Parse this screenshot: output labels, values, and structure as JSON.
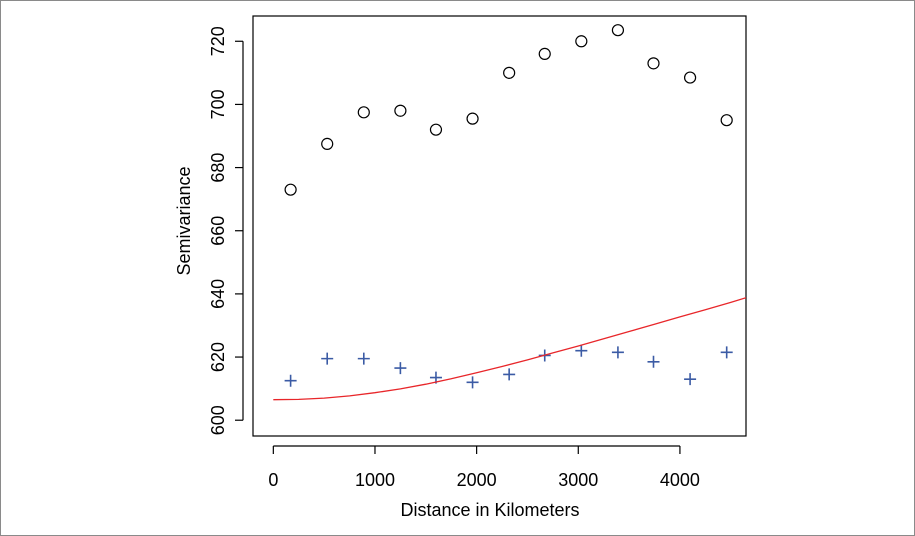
{
  "chart_data": {
    "type": "scatter",
    "xlabel": "Distance in Kilometers",
    "ylabel": "Semivariance",
    "xlim": [
      -200,
      4650
    ],
    "ylim": [
      595,
      728
    ],
    "x_ticks": [
      0,
      1000,
      2000,
      3000,
      4000
    ],
    "x_tick_labels": [
      "0",
      "1000",
      "2000",
      "3000",
      "4000"
    ],
    "y_ticks": [
      600,
      620,
      640,
      660,
      680,
      700,
      720
    ],
    "y_tick_labels": [
      "600",
      "620",
      "640",
      "660",
      "680",
      "700",
      "720"
    ],
    "grid": false,
    "legend": "none",
    "series": [
      {
        "marker": "open-circle",
        "color": "#000000",
        "points": [
          [
            170,
            673
          ],
          [
            530,
            687.5
          ],
          [
            890,
            697.5
          ],
          [
            1250,
            698
          ],
          [
            1600,
            692
          ],
          [
            1960,
            695.5
          ],
          [
            2320,
            710
          ],
          [
            2670,
            716
          ],
          [
            3030,
            720
          ],
          [
            3390,
            723.5
          ],
          [
            3740,
            713
          ],
          [
            4100,
            708.5
          ],
          [
            4460,
            695
          ]
        ]
      },
      {
        "marker": "plus",
        "color": "#3b5ba5",
        "points": [
          [
            170,
            612.5
          ],
          [
            530,
            619.5
          ],
          [
            890,
            619.5
          ],
          [
            1250,
            616.5
          ],
          [
            1600,
            613.5
          ],
          [
            1960,
            612
          ],
          [
            2320,
            614.5
          ],
          [
            2670,
            620.5
          ],
          [
            3030,
            622
          ],
          [
            3390,
            621.5
          ],
          [
            3740,
            618.5
          ],
          [
            4100,
            613
          ],
          [
            4460,
            621.5
          ]
        ]
      },
      {
        "marker": "line",
        "color": "#e8262a",
        "points": [
          [
            0,
            606.5
          ],
          [
            250,
            606.6
          ],
          [
            500,
            607
          ],
          [
            750,
            607.7
          ],
          [
            1000,
            608.7
          ],
          [
            1250,
            609.9
          ],
          [
            1500,
            611.4
          ],
          [
            1750,
            613.1
          ],
          [
            2000,
            615
          ],
          [
            2250,
            617
          ],
          [
            2500,
            619.1
          ],
          [
            2750,
            621.3
          ],
          [
            3000,
            623.5
          ],
          [
            3250,
            625.8
          ],
          [
            3500,
            628.1
          ],
          [
            3750,
            630.4
          ],
          [
            4000,
            632.7
          ],
          [
            4250,
            635
          ],
          [
            4500,
            637.3
          ],
          [
            4650,
            638.8
          ]
        ]
      }
    ]
  }
}
